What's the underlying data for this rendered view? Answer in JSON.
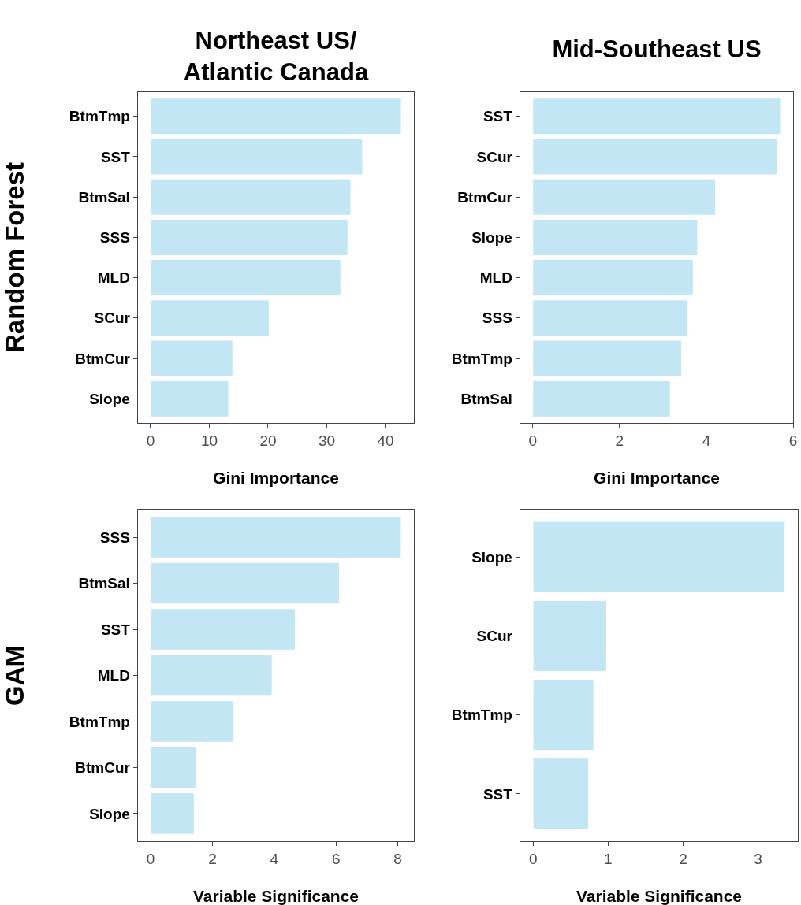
{
  "chart_data": [
    {
      "type": "bar",
      "orientation": "horizontal",
      "title": "Northeast US/\nAtlantic Canada",
      "ylabel": "Random Forest",
      "xlabel": "Gini Importance",
      "categories": [
        "BtmTmp",
        "SST",
        "BtmSal",
        "SSS",
        "MLD",
        "SCur",
        "BtmCur",
        "Slope"
      ],
      "values": [
        42.7,
        36.1,
        34.1,
        33.6,
        32.4,
        20.2,
        14.0,
        13.3
      ],
      "color": "#c3e6f4",
      "xlim": [
        -2.14,
        44.84
      ],
      "xticks": [
        0,
        10,
        20,
        30,
        40
      ]
    },
    {
      "type": "bar",
      "orientation": "horizontal",
      "title": "Mid-Southeast US",
      "xlabel": "Gini Importance",
      "categories": [
        "SST",
        "SCur",
        "BtmCur",
        "Slope",
        "MLD",
        "SSS",
        "BtmTmp",
        "BtmSal"
      ],
      "values": [
        5.71,
        5.63,
        4.21,
        3.8,
        3.7,
        3.57,
        3.43,
        3.17
      ],
      "color": "#c3e6f4",
      "xlim": [
        -0.286,
        6.0
      ],
      "xticks": [
        0,
        2,
        4,
        6
      ]
    },
    {
      "type": "bar",
      "orientation": "horizontal",
      "ylabel": "GAM",
      "xlabel": "Variable Significance",
      "categories": [
        "SSS",
        "BtmSal",
        "SST",
        "MLD",
        "BtmTmp",
        "BtmCur",
        "Slope"
      ],
      "values": [
        8.11,
        6.11,
        4.68,
        3.93,
        2.67,
        1.49,
        1.41
      ],
      "color": "#c3e6f4",
      "xlim": [
        -0.41,
        8.52
      ],
      "xticks": [
        0,
        2,
        4,
        6,
        8
      ]
    },
    {
      "type": "bar",
      "orientation": "horizontal",
      "xlabel": "Variable Significance",
      "categories": [
        "Slope",
        "SCur",
        "BtmTmp",
        "SST"
      ],
      "values": [
        3.36,
        0.98,
        0.81,
        0.74
      ],
      "color": "#c3e6f4",
      "xlim": [
        -0.17,
        3.53
      ],
      "xticks": [
        0,
        1,
        2,
        3
      ]
    }
  ]
}
